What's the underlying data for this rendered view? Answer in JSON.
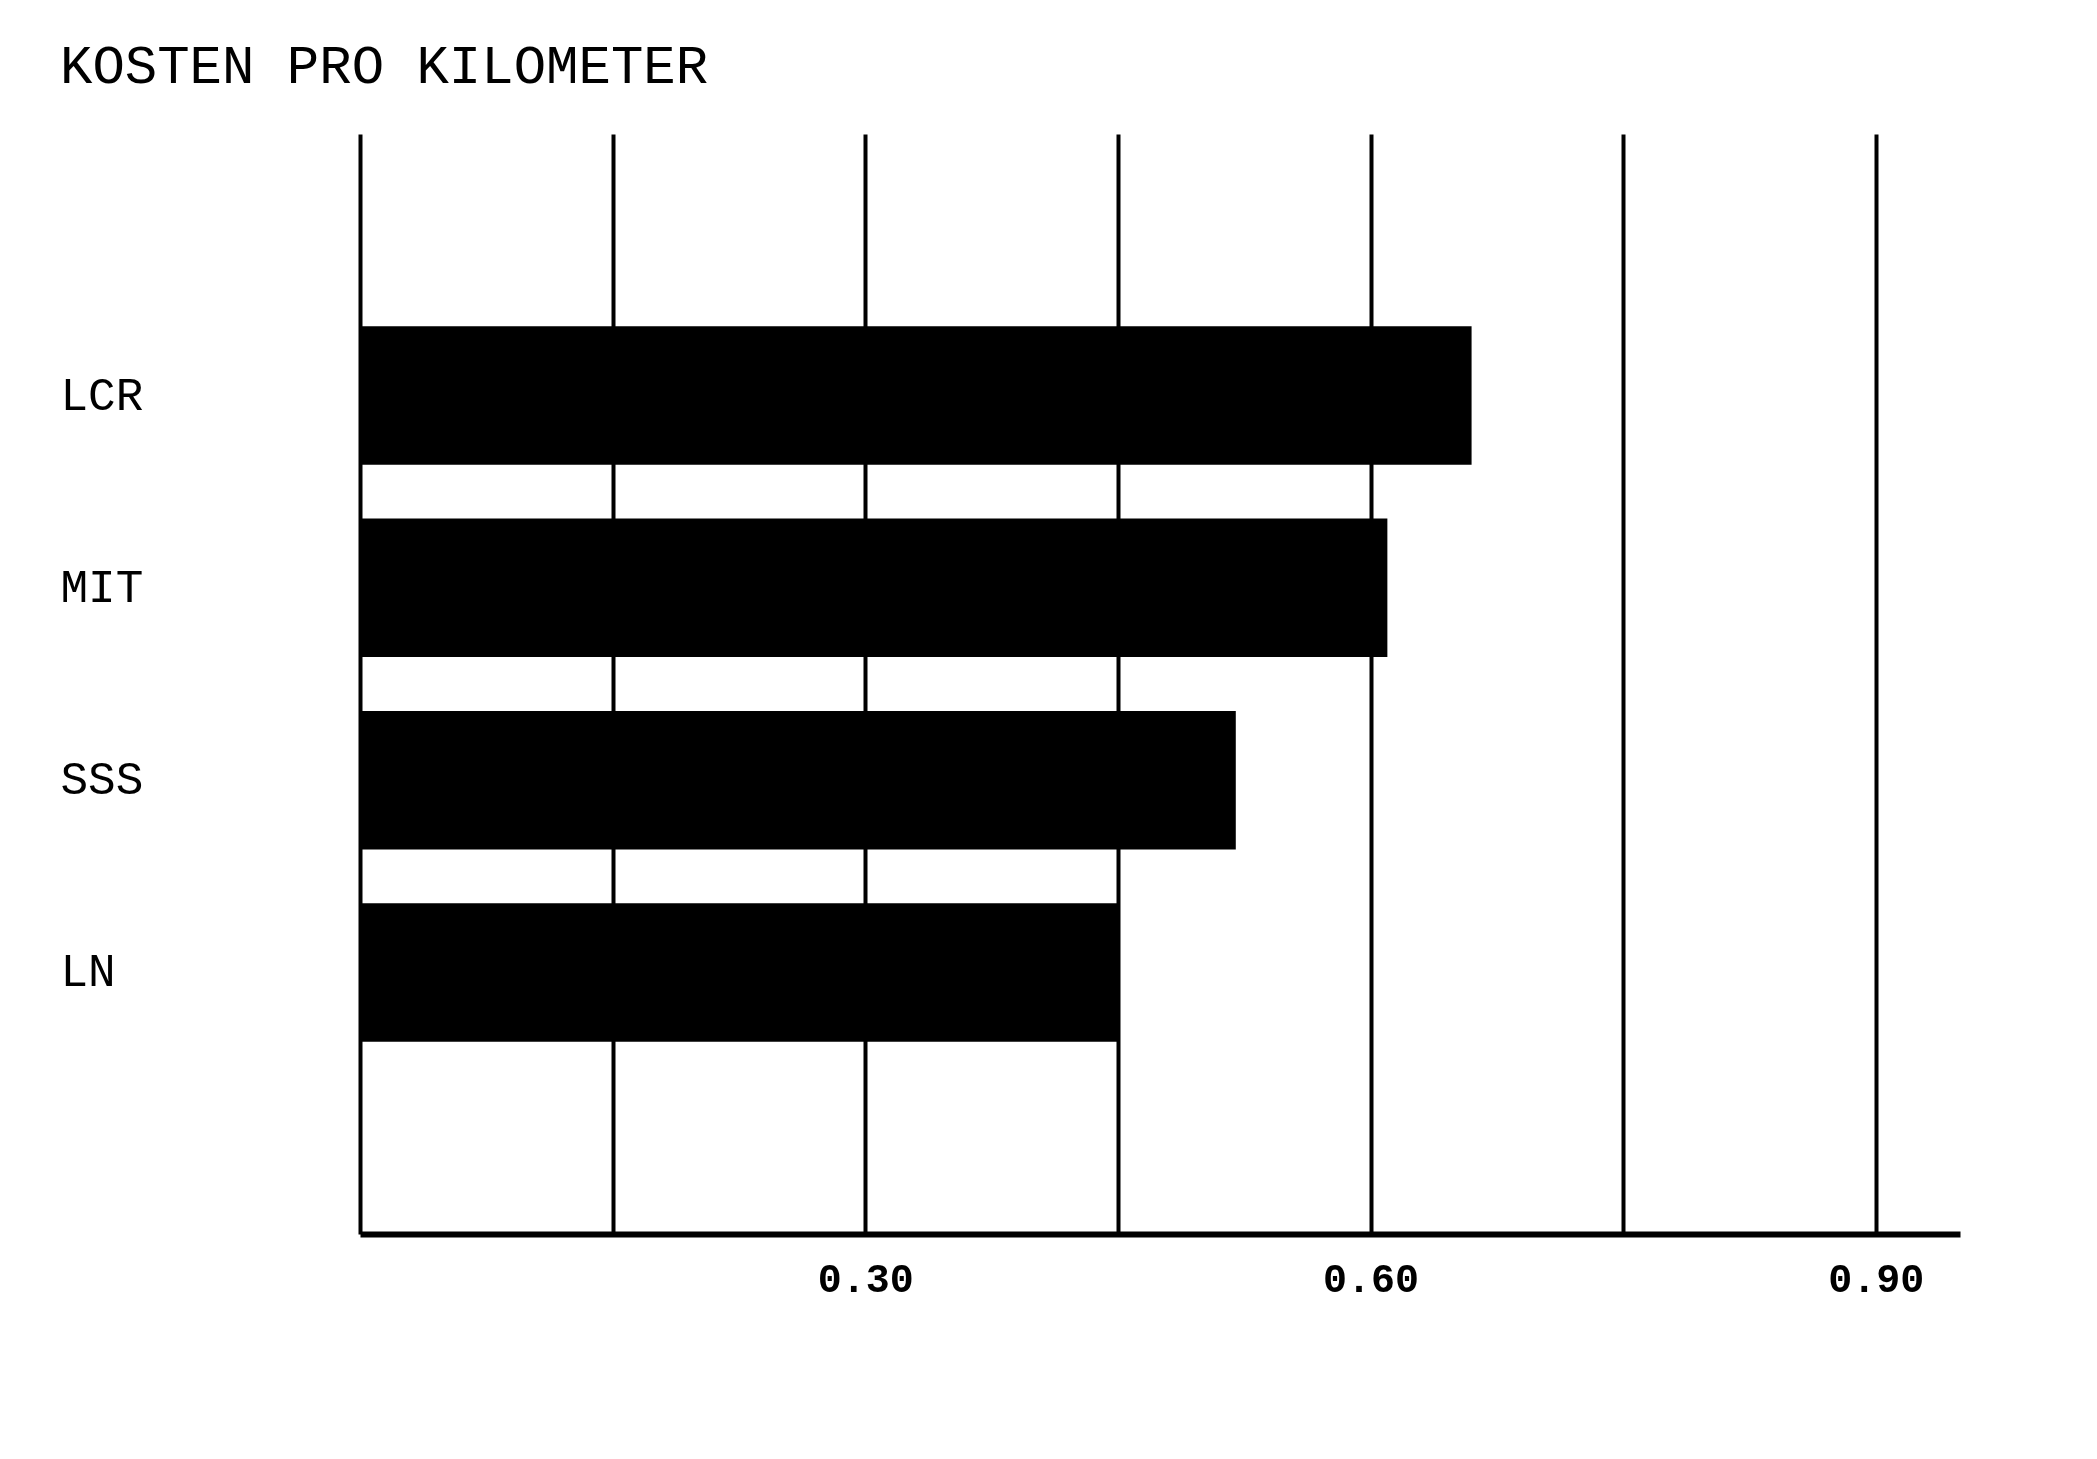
{
  "chart_data": {
    "type": "bar",
    "orientation": "horizontal",
    "title": "KOSTEN PRO KILOMETER",
    "categories": [
      "LCR",
      "MIT",
      "SSS",
      "LN"
    ],
    "values": [
      0.66,
      0.61,
      0.52,
      0.45
    ],
    "color": "#000000",
    "xlim": [
      0,
      0.95
    ],
    "xticks": [
      {
        "value": 0,
        "label": null
      },
      {
        "value": 0.15,
        "label": null
      },
      {
        "value": 0.3,
        "label": "0.30"
      },
      {
        "value": 0.45,
        "label": null
      },
      {
        "value": 0.6,
        "label": "0.60"
      },
      {
        "value": 0.75,
        "label": null
      },
      {
        "value": 0.9,
        "label": "0.90"
      }
    ],
    "grid": "x"
  }
}
